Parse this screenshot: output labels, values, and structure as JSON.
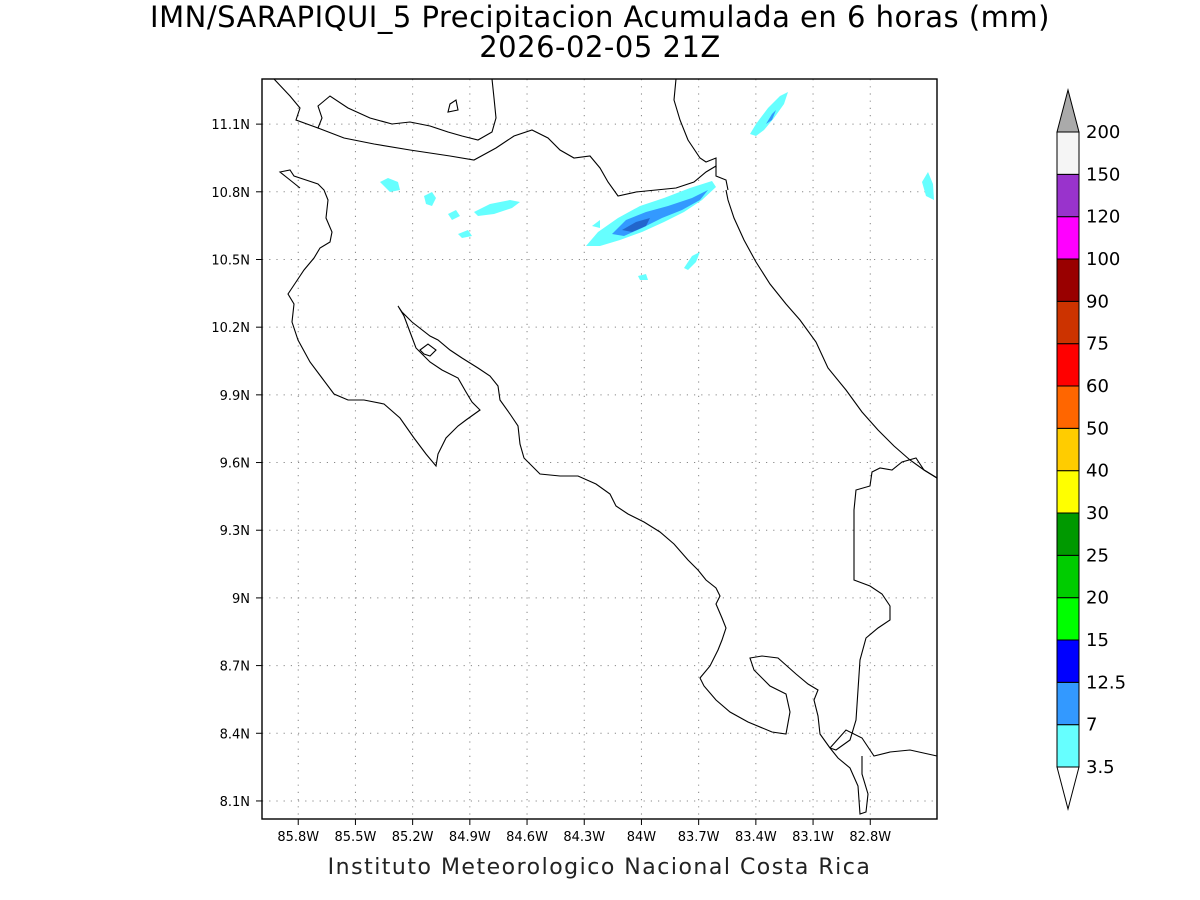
{
  "title": {
    "line1": "IMN/SARAPIQUI_5 Precipitacion Acumulada en 6 horas (mm)",
    "line2": "2026-02-05 21Z"
  },
  "footer": "Instituto Meteorologico Nacional Costa Rica",
  "axes": {
    "lat_ticks": [
      "11.1N",
      "10.8N",
      "10.5N",
      "10.2N",
      "9.9N",
      "9.6N",
      "9.3N",
      "9N",
      "8.7N",
      "8.4N",
      "8.1N"
    ],
    "lat_values": [
      11.1,
      10.8,
      10.5,
      10.2,
      9.9,
      9.6,
      9.3,
      9.0,
      8.7,
      8.4,
      8.1
    ],
    "lon_ticks": [
      "85.8W",
      "85.5W",
      "85.2W",
      "84.9W",
      "84.6W",
      "84.3W",
      "84W",
      "83.7W",
      "83.4W",
      "83.1W",
      "82.8W"
    ],
    "lon_values": [
      -85.8,
      -85.5,
      -85.2,
      -84.9,
      -84.6,
      -84.3,
      -84.0,
      -83.7,
      -83.4,
      -83.1,
      -82.8
    ],
    "lon_range": [
      -85.99,
      -82.45
    ],
    "lat_range": [
      8.02,
      11.3
    ],
    "grid": "dotted"
  },
  "colorbar": {
    "labels": [
      "3.5",
      "7",
      "12.5",
      "15",
      "20",
      "25",
      "30",
      "40",
      "50",
      "60",
      "75",
      "90",
      "100",
      "120",
      "150",
      "200"
    ],
    "colors": [
      "#66ffff",
      "#3399ff",
      "#0000ff",
      "#00ff00",
      "#00cc00",
      "#009900",
      "#ffff00",
      "#ffcc00",
      "#ff6600",
      "#ff0000",
      "#cc3300",
      "#990000",
      "#ff00ff",
      "#9933cc",
      "#f5f5f5"
    ],
    "over_color": "#aaaaaa",
    "under_color": "#ffffff"
  },
  "precip_areas": {
    "light_color": "#66ffff",
    "moderate_color": "#3399ff",
    "dark_color": "#2266cc"
  }
}
